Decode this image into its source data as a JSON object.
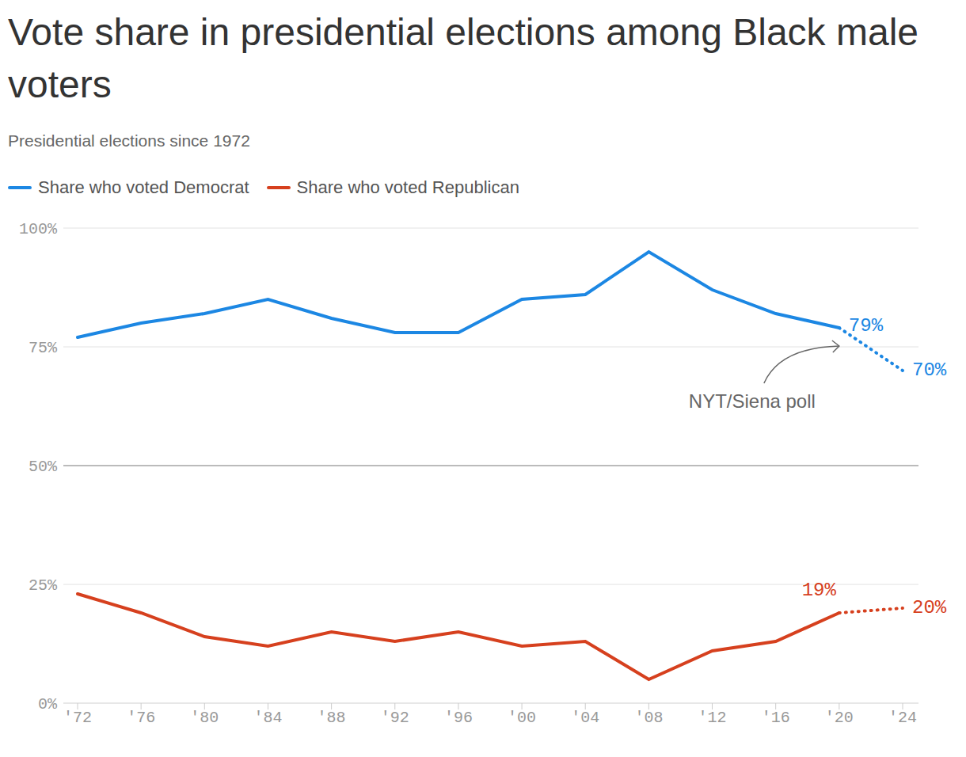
{
  "chart_data": {
    "type": "line",
    "title": "Vote share in presidential elections among Black male voters",
    "subtitle": "Presidential elections since 1972",
    "categories": [
      "'72",
      "'76",
      "'80",
      "'84",
      "'88",
      "'92",
      "'96",
      "'00",
      "'04",
      "'08",
      "'12",
      "'16",
      "'20",
      "'24"
    ],
    "series": [
      {
        "name": "Share who voted Democrat",
        "color": "#1c87e3",
        "values": [
          77,
          80,
          82,
          85,
          81,
          78,
          78,
          85,
          86,
          95,
          87,
          82,
          79,
          null
        ],
        "value_labels": [
          null,
          null,
          null,
          null,
          null,
          null,
          null,
          null,
          null,
          null,
          null,
          null,
          "79%",
          null
        ]
      },
      {
        "color": "#1c87e3",
        "line_style": "dotted",
        "values": [
          null,
          null,
          null,
          null,
          null,
          null,
          null,
          null,
          null,
          null,
          null,
          null,
          79,
          70
        ],
        "value_labels": [
          null,
          null,
          null,
          null,
          null,
          null,
          null,
          null,
          null,
          null,
          null,
          null,
          null,
          "70%"
        ],
        "annotation": "NYT/Siena poll"
      },
      {
        "name": "Share who voted Republican",
        "color": "#d6401e",
        "values": [
          23,
          19,
          14,
          12,
          15,
          13,
          15,
          12,
          13,
          5,
          11,
          13,
          19,
          null
        ],
        "value_labels": [
          null,
          null,
          null,
          null,
          null,
          null,
          null,
          null,
          null,
          null,
          null,
          null,
          "19%",
          null
        ]
      },
      {
        "color": "#d6401e",
        "line_style": "dotted",
        "values": [
          null,
          null,
          null,
          null,
          null,
          null,
          null,
          null,
          null,
          null,
          null,
          null,
          19,
          20
        ],
        "value_labels": [
          null,
          null,
          null,
          null,
          null,
          null,
          null,
          null,
          null,
          null,
          null,
          null,
          null,
          "20%"
        ]
      }
    ],
    "ylim": [
      0,
      100
    ],
    "yticks": [
      {
        "value": 0,
        "label": "0%"
      },
      {
        "value": 25,
        "label": "25%"
      },
      {
        "value": 50,
        "label": "50%"
      },
      {
        "value": 75,
        "label": "75%"
      },
      {
        "value": 100,
        "label": "100%"
      }
    ],
    "grid": true
  }
}
